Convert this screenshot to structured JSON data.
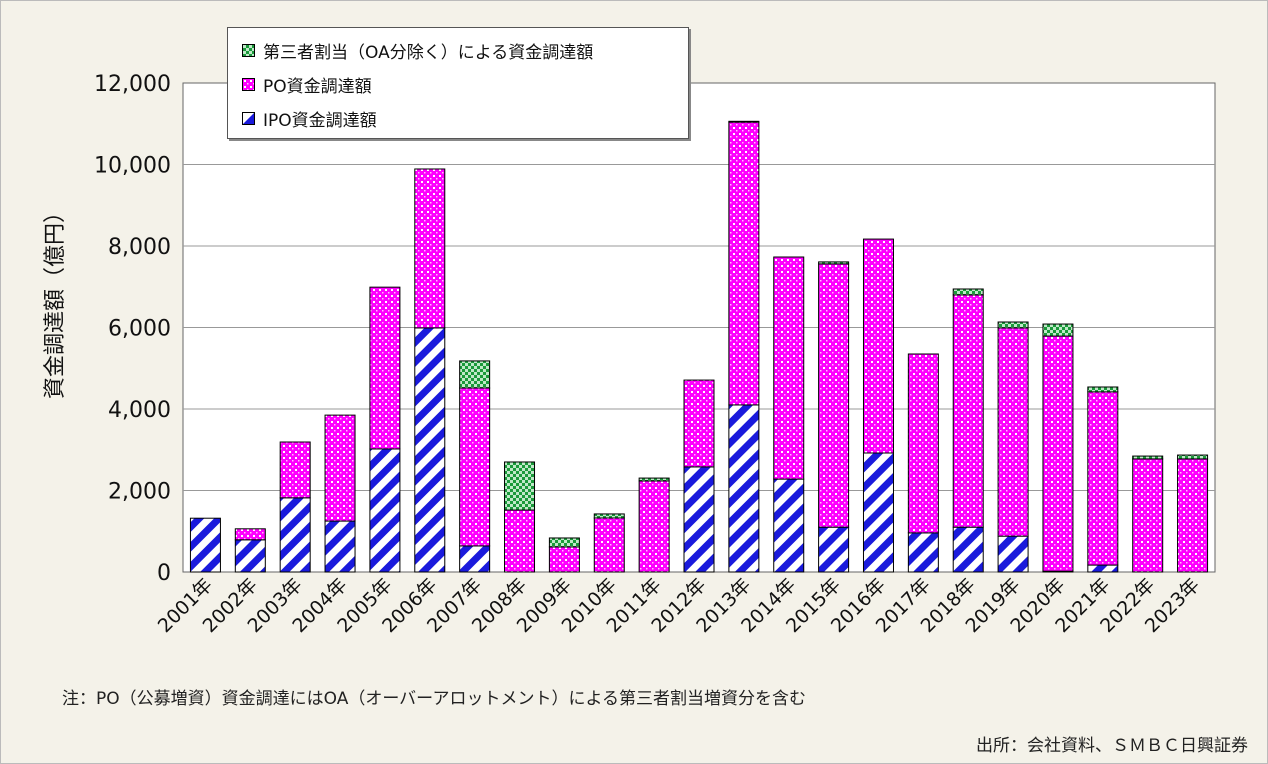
{
  "chart_data": {
    "type": "stacked-bar",
    "title": "",
    "xlabel": "",
    "ylabel": "資金調達額（億円）",
    "ylim": [
      0,
      12000
    ],
    "yticks": [
      "0",
      "2,000",
      "4,000",
      "6,000",
      "8,000",
      "10,000",
      "12,000"
    ],
    "grid": true,
    "legend_position": "top-left",
    "categories": [
      "2001年",
      "2002年",
      "2003年",
      "2004年",
      "2005年",
      "2006年",
      "2007年",
      "2008年",
      "2009年",
      "2010年",
      "2011年",
      "2012年",
      "2013年",
      "2014年",
      "2015年",
      "2016年",
      "2017年",
      "2018年",
      "2019年",
      "2020年",
      "2021年",
      "2022年",
      "2023年"
    ],
    "series": [
      {
        "name": "IPO資金調達額",
        "color": "#1a1adc",
        "values": [
          1320,
          790,
          1820,
          1250,
          3020,
          5990,
          640,
          0,
          0,
          0,
          0,
          2580,
          4100,
          2280,
          1100,
          2920,
          960,
          1100,
          880,
          20,
          170,
          0,
          0
        ]
      },
      {
        "name": "PO資金調達額",
        "color": "#ff00ff",
        "values": [
          0,
          270,
          1370,
          2600,
          3970,
          3900,
          3875,
          1520,
          615,
          1325,
          2235,
          2130,
          6940,
          5450,
          6460,
          5250,
          4390,
          5700,
          5110,
          5770,
          4250,
          2775,
          2775
        ]
      },
      {
        "name": "第三者割当（OA分除く）による資金調達額",
        "color": "#1a9a3a",
        "values": [
          0,
          0,
          0,
          0,
          0,
          0,
          665,
          1180,
          220,
          100,
          70,
          0,
          20,
          0,
          50,
          0,
          0,
          145,
          145,
          295,
          120,
          70,
          95
        ]
      }
    ]
  },
  "note": "注：PO（公募増資）資金調達にはOA（オーバーアロットメント）による第三者割当増資分を含む",
  "source": "出所：会社資料、ＳＭＢＣ日興証券"
}
